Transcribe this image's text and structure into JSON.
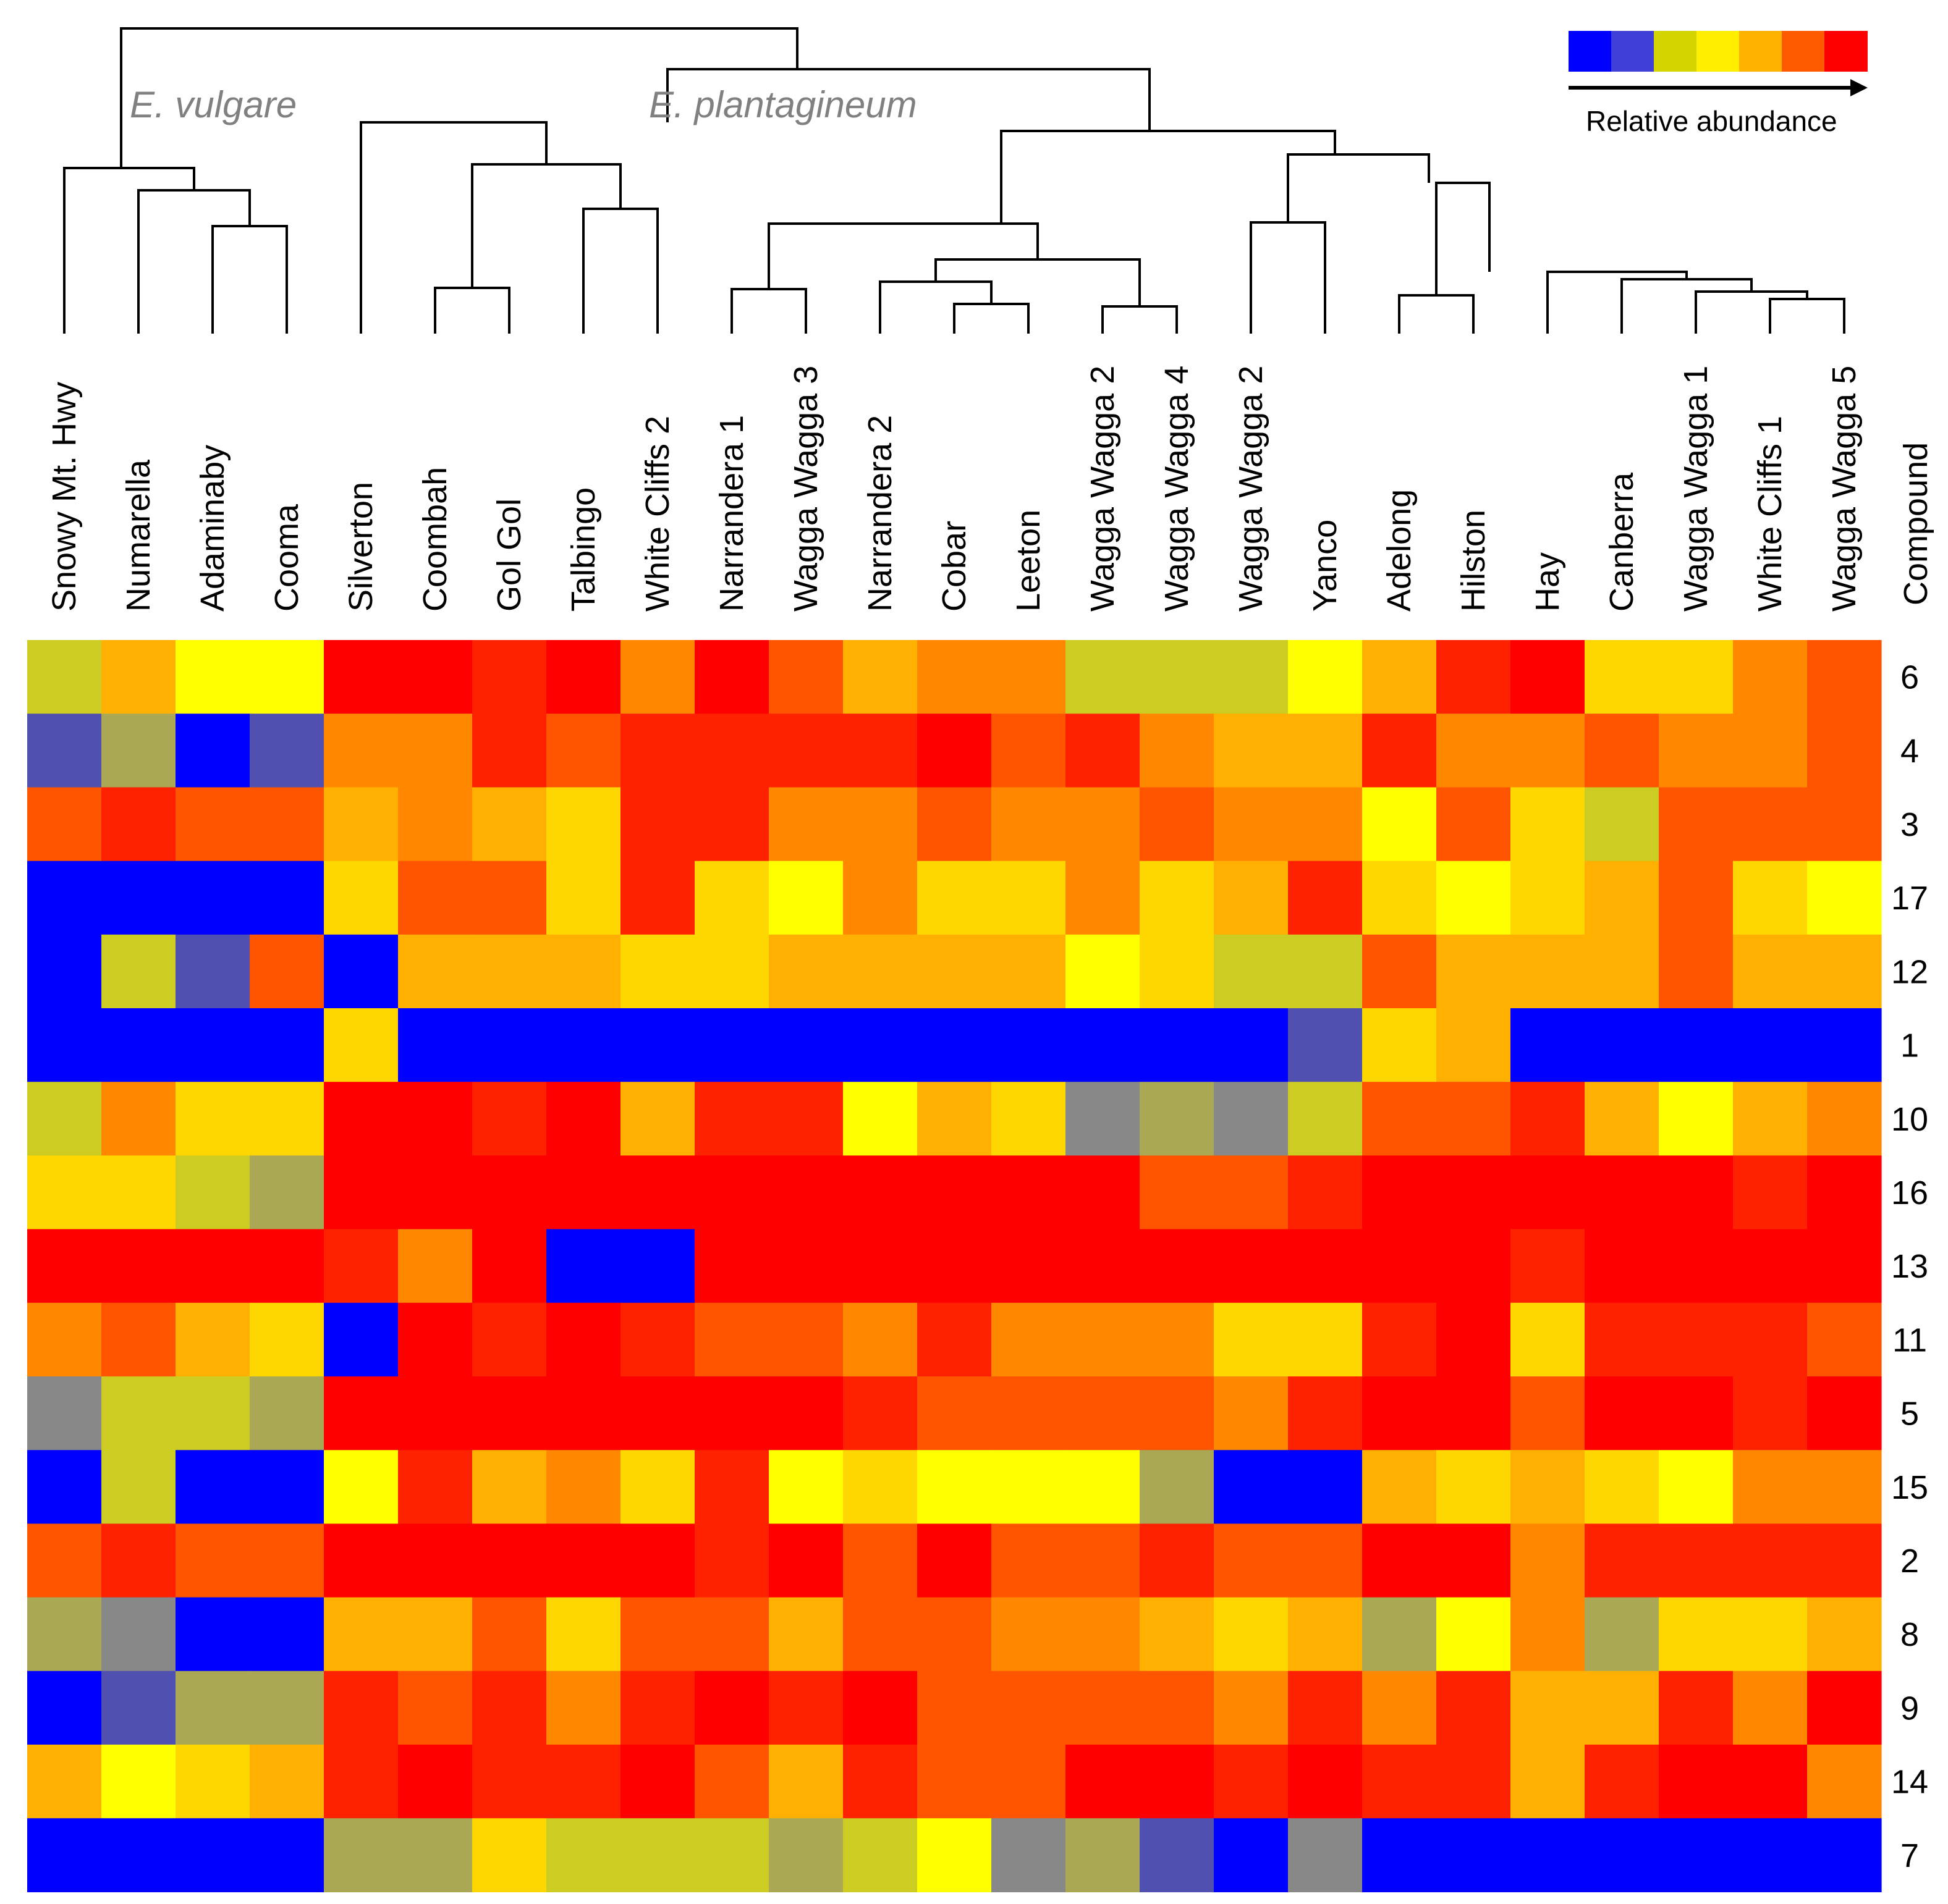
{
  "chart_data": {
    "type": "heatmap",
    "title": "",
    "group_labels": {
      "left": "E. vulgare",
      "right": "E. plantagineum"
    },
    "row_axis_title": "Compound",
    "columns": [
      "Snowy Mt. Hwy",
      "Numarella",
      "Adaminaby",
      "Cooma",
      "Silverton",
      "Coombah",
      "Gol Gol",
      "Talbingo",
      "White Cliffs 2",
      "Narrandera 1",
      "Wagga Wagga 3",
      "Narrandera 2",
      "Cobar",
      "Leeton",
      "Wagga Wagga 2",
      "Wagga Wagga 4",
      "Wagga Wagga 2",
      "Yanco",
      "Adelong",
      "Hilston",
      "Hay",
      "Canberra",
      "Wagga Wagga 1",
      "White Cliffs 1",
      "Wagga Wagga 5"
    ],
    "rows": [
      "6",
      "4",
      "3",
      "17",
      "12",
      "1",
      "10",
      "16",
      "13",
      "11",
      "5",
      "15",
      "2",
      "8",
      "9",
      "14",
      "7"
    ],
    "legend": {
      "label": "Relative abundance",
      "scale_colors": [
        "#0000ff",
        "#4040d8",
        "#d4d400",
        "#ffee00",
        "#ffb300",
        "#ff5a00",
        "#ff0000"
      ]
    },
    "palette": {
      "B": "#0000ff",
      "P": "#5050b0",
      "K": "#888888",
      "O": "#aaa855",
      "N": "#cccc22",
      "Y": "#ffff00",
      "G": "#ffd700",
      "A": "#ffb000",
      "R": "#ff8800",
      "V": "#ff5500",
      "S": "#ff2200",
      "X": "#ff0000"
    },
    "cells": [
      "NAYYXXSXRXVARRNNNYASXGGRV",
      "POBPRRSVSSSSXVSRAASRRVRRV",
      "VSVVARAGSSRRVRRVRRYVGNVVV",
      "BBBBGVVGSGYRGGRGASGYGAVGY",
      "BNPVBAAAGGAAAAYGNNVAAAVAA",
      "BBBBGBBBBBBBBBBBBPGABBBBB",
      "NRGGXXSXASSYAGKOKNVVSAYAR",
      "GGNOXXXXXXXXXXXVVSXXXXXSX",
      "XXXXSRXBBXXXXXXXXXXXSXXXX",
      "RVAGBXSXSVVRSRRRGGSXGSSSV",
      "KNNOXXXXXXXSVVVVRSXXVXXSX",
      "BNBBYSARGSYGYYYOBBAGAGYRR",
      "VSVVXXXXXSXVXVVSVVXXRSSSS",
      "OKBBAAVGVVAVVRRAGAOYROGGA",
      "BPOOSVSRSXSXVVVVRSRSAASRX",
      "AYGASXSSXVASVVXXSXSSASXXR",
      "BBBBOOGNNNONYKOPBKBBBBBBB"
    ]
  }
}
